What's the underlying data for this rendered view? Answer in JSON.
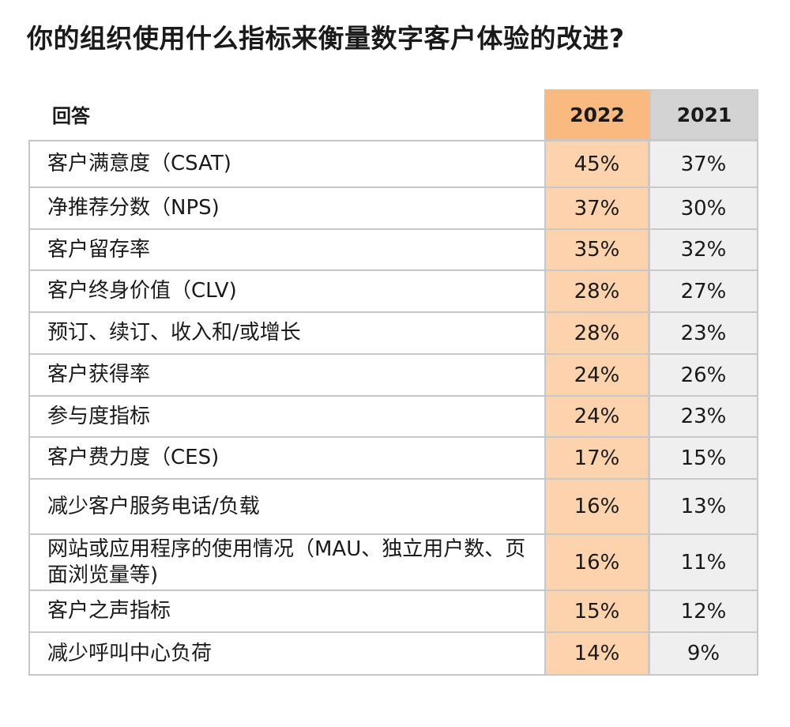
{
  "title": "你的组织使用什么指标来衡量数字客户体验的改进?",
  "chart_data": {
    "type": "table",
    "columns": [
      "回答",
      "2022",
      "2021"
    ],
    "rows": [
      {
        "label": "客户满意度（CSAT)",
        "v2022": "45%",
        "v2021": "37%"
      },
      {
        "label": "净推荐分数（NPS)",
        "v2022": "37%",
        "v2021": "30%"
      },
      {
        "label": "客户留存率",
        "v2022": "35%",
        "v2021": "32%"
      },
      {
        "label": "客户终身价值（CLV)",
        "v2022": "28%",
        "v2021": "27%"
      },
      {
        "label": "预订、续订、收入和/或增长",
        "v2022": "28%",
        "v2021": "23%"
      },
      {
        "label": "客户获得率",
        "v2022": "24%",
        "v2021": "26%"
      },
      {
        "label": "参与度指标",
        "v2022": "24%",
        "v2021": "23%"
      },
      {
        "label": "客户费力度（CES)",
        "v2022": "17%",
        "v2021": "15%"
      },
      {
        "label": "减少客户服务电话/负载",
        "v2022": "16%",
        "v2021": "13%"
      },
      {
        "label": "网站或应用程序的使用情况（MAU、独立用户数、页面浏览量等)",
        "v2022": "16%",
        "v2021": "11%"
      },
      {
        "label": "客户之声指标",
        "v2022": "15%",
        "v2021": "12%"
      },
      {
        "label": "减少呼叫中心负荷",
        "v2022": "14%",
        "v2021": "9%"
      }
    ]
  },
  "colors": {
    "header_2022": "#f9b97f",
    "cell_2022": "#fcd3ad",
    "header_2021": "#d3d3d3",
    "cell_2021": "#efefef",
    "border": "#c8c8c8"
  }
}
